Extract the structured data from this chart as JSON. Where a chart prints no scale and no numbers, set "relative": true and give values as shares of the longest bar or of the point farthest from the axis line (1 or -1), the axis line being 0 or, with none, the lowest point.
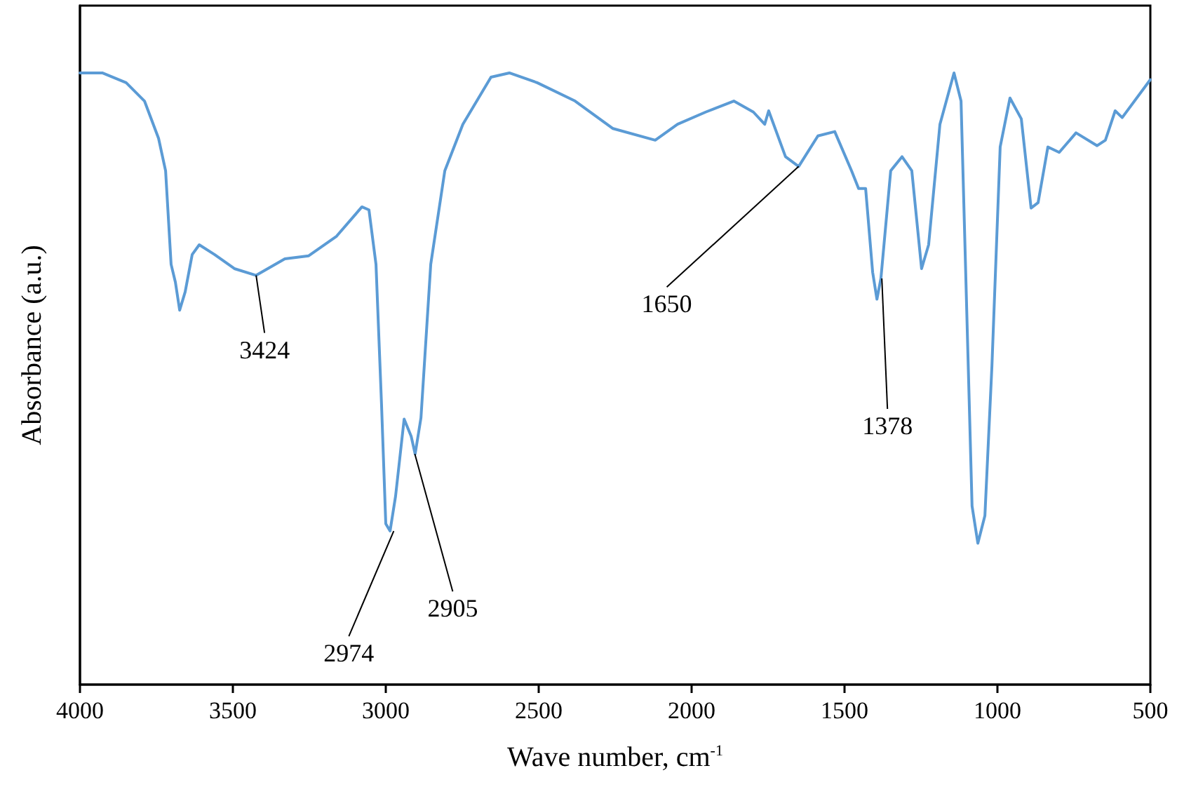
{
  "chart_data": {
    "type": "line",
    "relative": true,
    "xlabel": "Wave number, cm$^{-1}$",
    "ylabel": "Absorbance (a.u.)",
    "xlim": [
      4000,
      500
    ],
    "xticks": [
      4000,
      3500,
      3000,
      2500,
      2000,
      1500,
      1000,
      500
    ],
    "tick_labels": "x",
    "grid": false,
    "marker": "none",
    "line_style": "solid",
    "series": [
      {
        "color": "#5b9bd5",
        "x": [
          4000,
          3927,
          3849,
          3789,
          3743,
          3720,
          3702,
          3688,
          3674,
          3656,
          3633,
          3610,
          3560,
          3495,
          3424,
          3330,
          3252,
          3161,
          3078,
          3055,
          3032,
          3014,
          3000,
          2986,
          2968,
          2940,
          2917,
          2904,
          2885,
          2853,
          2807,
          2748,
          2656,
          2596,
          2505,
          2381,
          2257,
          2119,
          2046,
          1954,
          1862,
          1798,
          1761,
          1748,
          1693,
          1650,
          1587,
          1532,
          1477,
          1454,
          1431,
          1408,
          1394,
          1381,
          1349,
          1312,
          1280,
          1248,
          1225,
          1188,
          1142,
          1119,
          1083,
          1064,
          1041,
          1018,
          991,
          959,
          922,
          890,
          867,
          835,
          798,
          743,
          674,
          647,
          615,
          592,
          500
        ],
        "values": [
          1.0,
          1.0,
          0.984,
          0.954,
          0.893,
          0.84,
          0.687,
          0.658,
          0.612,
          0.642,
          0.703,
          0.719,
          0.703,
          0.68,
          0.669,
          0.696,
          0.701,
          0.733,
          0.781,
          0.776,
          0.687,
          0.459,
          0.263,
          0.251,
          0.308,
          0.434,
          0.406,
          0.377,
          0.436,
          0.687,
          0.84,
          0.916,
          0.993,
          1.0,
          0.984,
          0.954,
          0.909,
          0.89,
          0.916,
          0.936,
          0.954,
          0.936,
          0.916,
          0.938,
          0.863,
          0.847,
          0.897,
          0.904,
          0.84,
          0.811,
          0.811,
          0.674,
          0.63,
          0.664,
          0.84,
          0.863,
          0.84,
          0.68,
          0.719,
          0.916,
          1.0,
          0.954,
          0.292,
          0.231,
          0.276,
          0.521,
          0.879,
          0.959,
          0.925,
          0.779,
          0.788,
          0.879,
          0.87,
          0.902,
          0.881,
          0.89,
          0.938,
          0.927,
          0.989
        ]
      }
    ],
    "annotations": [
      {
        "text": "3424",
        "x": 3424,
        "y": 0.669
      },
      {
        "text": "2974",
        "x": 2974,
        "y": 0.251
      },
      {
        "text": "2905",
        "x": 2905,
        "y": 0.377
      },
      {
        "text": "1650",
        "x": 1650,
        "y": 0.847
      },
      {
        "text": "1378",
        "x": 1378,
        "y": 0.664
      }
    ]
  }
}
